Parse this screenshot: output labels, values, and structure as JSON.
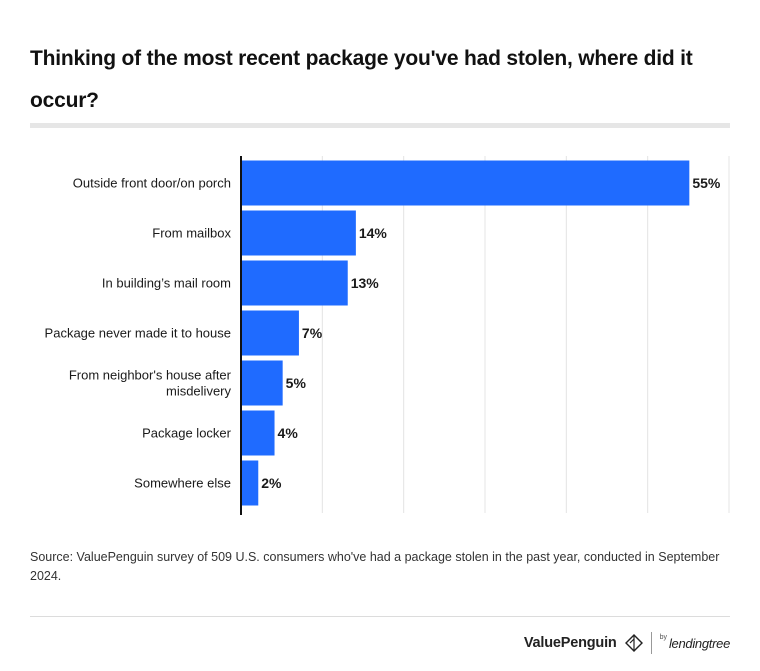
{
  "title": "Thinking of the most recent package you've had stolen, where did it occur?",
  "source": "Source: ValuePenguin survey of 509 U.S. consumers who've had a package stolen in the past year, conducted in September 2024.",
  "brand": {
    "primary": "ValuePenguin",
    "by": "by",
    "secondary": "lendingtree"
  },
  "icons": {
    "brand_logo": "penguin-diamond-icon"
  },
  "colors": {
    "bar": "#1f6bff",
    "grid": "#e4e4e4",
    "axis": "#111111"
  },
  "chart_data": {
    "type": "bar",
    "orientation": "horizontal",
    "categories": [
      [
        "Outside front door/on porch"
      ],
      [
        "From mailbox"
      ],
      [
        "In building’s mail room"
      ],
      [
        "Package never made it to house"
      ],
      [
        "From neighbor's house after",
        "misdelivery"
      ],
      [
        "Package locker"
      ],
      [
        "Somewhere else"
      ]
    ],
    "values": [
      55,
      14,
      13,
      7,
      5,
      4,
      2
    ],
    "value_labels": [
      "55%",
      "14%",
      "13%",
      "7%",
      "5%",
      "4%",
      "2%"
    ],
    "xlim": [
      0,
      60
    ],
    "grid": true
  }
}
